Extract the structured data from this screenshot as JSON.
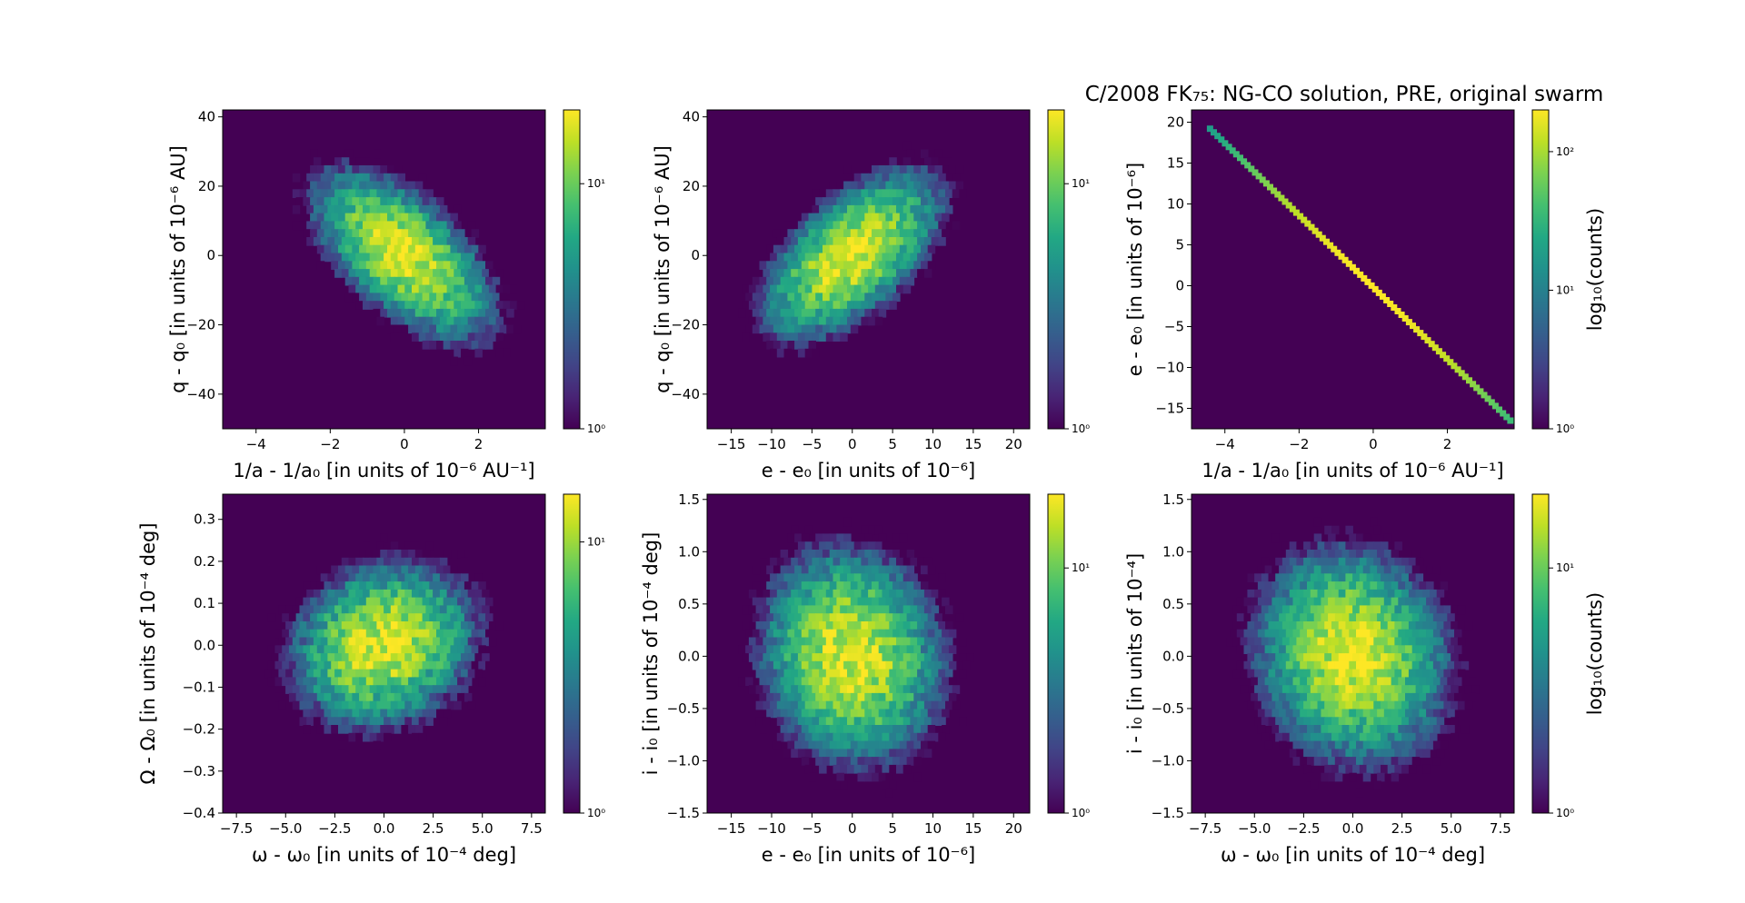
{
  "title": "C/2008 FK₇₅: NG-CO solution, PRE, original swarm",
  "chart_data": [
    {
      "type": "hexbin",
      "id": "p1",
      "xlabel": "1/a - 1/a₀ [in units of 10⁻⁶ AU⁻¹]",
      "ylabel": "q - q₀ [in units of 10⁻⁶ AU]",
      "xlim": [
        -4.9,
        3.8
      ],
      "ylim": [
        -50,
        42
      ],
      "xticks": [
        -4,
        -2,
        0,
        2
      ],
      "xtick_labels": [
        "−4",
        "−2",
        "0",
        "2"
      ],
      "yticks": [
        -40,
        -20,
        0,
        20,
        40
      ],
      "ytick_labels": [
        "−40",
        "−20",
        "0",
        "20",
        "40"
      ],
      "distribution": {
        "x_mean": 0,
        "y_mean": 0,
        "x_sd": 1.2,
        "y_sd": 12,
        "corr": -0.6
      },
      "colorbar": {
        "min": 1,
        "max": 20,
        "ticks": [
          "10⁰",
          "10¹"
        ],
        "label": ""
      }
    },
    {
      "type": "hexbin",
      "id": "p2",
      "xlabel": "e - e₀ [in units of 10⁻⁶]",
      "ylabel": "q - q₀ [in units of 10⁻⁶ AU]",
      "xlim": [
        -18,
        22
      ],
      "ylim": [
        -50,
        42
      ],
      "xticks": [
        -15,
        -10,
        -5,
        0,
        5,
        10,
        15,
        20
      ],
      "xtick_labels": [
        "−15",
        "−10",
        "−5",
        "0",
        "5",
        "10",
        "15",
        "20"
      ],
      "yticks": [
        -40,
        -20,
        0,
        20,
        40
      ],
      "ytick_labels": [
        "−40",
        "−20",
        "0",
        "20",
        "40"
      ],
      "distribution": {
        "x_mean": 0,
        "y_mean": 0,
        "x_sd": 5.5,
        "y_sd": 12,
        "corr": 0.6
      },
      "colorbar": {
        "min": 1,
        "max": 20,
        "ticks": [
          "10⁰",
          "10¹"
        ],
        "label": ""
      }
    },
    {
      "type": "hexbin-line",
      "id": "p3",
      "xlabel": "1/a - 1/a₀ [in units of 10⁻⁶ AU⁻¹]",
      "ylabel": "e - e₀ [in units of 10⁻⁶]",
      "xlim": [
        -4.9,
        3.8
      ],
      "ylim": [
        -17.5,
        21.5
      ],
      "xticks": [
        -4,
        -2,
        0,
        2
      ],
      "xtick_labels": [
        "−4",
        "−2",
        "0",
        "2"
      ],
      "yticks": [
        -15,
        -10,
        -5,
        0,
        5,
        10,
        15,
        20
      ],
      "ytick_labels": [
        "−15",
        "−10",
        "−5",
        "0",
        "5",
        "10",
        "15",
        "20"
      ],
      "line": {
        "x_start": -4.4,
        "y_start": 19.2,
        "x_end": 3.7,
        "y_end": -16.5
      },
      "colorbar": {
        "min": 1,
        "max": 200,
        "ticks": [
          "10⁰",
          "10¹",
          "10²"
        ],
        "label": "log₁₀(counts)"
      }
    },
    {
      "type": "hexbin",
      "id": "p4",
      "xlabel": "ω - ω₀ [in units of 10⁻⁴ deg]",
      "ylabel": "Ω - Ω₀ [in units of 10⁻⁴ deg]",
      "xlim": [
        -8.2,
        8.2
      ],
      "ylim": [
        -0.4,
        0.36
      ],
      "xticks": [
        -7.5,
        -5,
        -2.5,
        0,
        2.5,
        5,
        7.5
      ],
      "xtick_labels": [
        "−7.5",
        "−5.0",
        "−2.5",
        "0.0",
        "2.5",
        "5.0",
        "7.5"
      ],
      "yticks": [
        -0.4,
        -0.3,
        -0.2,
        -0.1,
        0,
        0.1,
        0.2,
        0.3
      ],
      "ytick_labels": [
        "−0.4",
        "−0.3",
        "−0.2",
        "−0.1",
        "0.0",
        "0.1",
        "0.2",
        "0.3"
      ],
      "distribution": {
        "x_mean": 0,
        "y_mean": 0,
        "x_sd": 2.4,
        "y_sd": 0.1,
        "corr": 0.15
      },
      "colorbar": {
        "min": 1,
        "max": 15,
        "ticks": [
          "10⁰",
          "10¹"
        ],
        "label": ""
      }
    },
    {
      "type": "hexbin",
      "id": "p5",
      "xlabel": "e - e₀ [in units of 10⁻⁶]",
      "ylabel": "i - i₀ [in units of 10⁻⁴ deg]",
      "xlim": [
        -18,
        22
      ],
      "ylim": [
        -1.5,
        1.55
      ],
      "xticks": [
        -15,
        -10,
        -5,
        0,
        5,
        10,
        15,
        20
      ],
      "xtick_labels": [
        "−15",
        "−10",
        "−5",
        "0",
        "5",
        "10",
        "15",
        "20"
      ],
      "yticks": [
        -1.5,
        -1,
        -0.5,
        0,
        0.5,
        1,
        1.5
      ],
      "ytick_labels": [
        "−1.5",
        "−1.0",
        "−0.5",
        "0.0",
        "0.5",
        "1.0",
        "1.5"
      ],
      "distribution": {
        "x_mean": 0,
        "y_mean": 0,
        "x_sd": 5.5,
        "y_sd": 0.5,
        "corr": -0.1
      },
      "colorbar": {
        "min": 1,
        "max": 20,
        "ticks": [
          "10⁰",
          "10¹"
        ],
        "label": ""
      }
    },
    {
      "type": "hexbin",
      "id": "p6",
      "xlabel": "ω - ω₀ [in units of 10⁻⁴ deg]",
      "ylabel": "i - i₀ [in units of 10⁻⁴]",
      "xlim": [
        -8.2,
        8.2
      ],
      "ylim": [
        -1.5,
        1.55
      ],
      "xticks": [
        -7.5,
        -5,
        -2.5,
        0,
        2.5,
        5,
        7.5
      ],
      "xtick_labels": [
        "−7.5",
        "−5.0",
        "−2.5",
        "0.0",
        "2.5",
        "5.0",
        "7.5"
      ],
      "yticks": [
        -1.5,
        -1,
        -0.5,
        0,
        0.5,
        1,
        1.5
      ],
      "ytick_labels": [
        "−1.5",
        "−1.0",
        "−0.5",
        "0.0",
        "0.5",
        "1.0",
        "1.5"
      ],
      "distribution": {
        "x_mean": 0,
        "y_mean": 0,
        "x_sd": 2.4,
        "y_sd": 0.5,
        "corr": -0.1
      },
      "colorbar": {
        "min": 1,
        "max": 20,
        "ticks": [
          "10⁰",
          "10¹"
        ],
        "label": "log₁₀(counts)"
      }
    }
  ],
  "colors": {
    "background": "#440154",
    "colormap": "viridis"
  }
}
